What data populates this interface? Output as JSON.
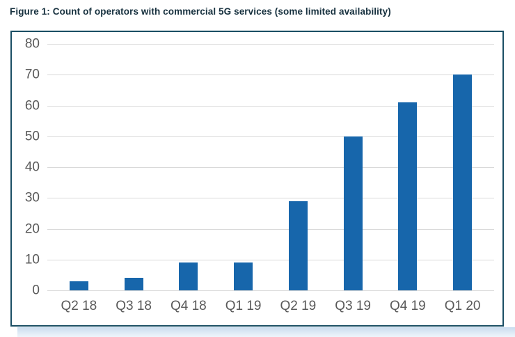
{
  "title": "Figure 1: Count of operators with commercial 5G services (some limited availability)",
  "colors": {
    "bar": "#1766ab",
    "box_border": "#1a4e64",
    "gridline": "#d9d9d9",
    "tick_text": "#595959",
    "title_text": "#16303e",
    "bottom_strip": "#c9dcee"
  },
  "chart_data": {
    "type": "bar",
    "title": "Figure 1: Count of operators with commercial 5G services (some limited availability)",
    "categories": [
      "Q2 18",
      "Q3 18",
      "Q4 18",
      "Q1 19",
      "Q2 19",
      "Q3 19",
      "Q4 19",
      "Q1 20"
    ],
    "values": [
      3,
      4,
      9,
      9,
      29,
      50,
      61,
      70
    ],
    "xlabel": "",
    "ylabel": "",
    "ylim": [
      0,
      80
    ],
    "yticks": [
      0,
      10,
      20,
      30,
      40,
      50,
      60,
      70,
      80
    ],
    "grid": "horizontal",
    "legend": "none",
    "bar_color": "#1766ab"
  }
}
